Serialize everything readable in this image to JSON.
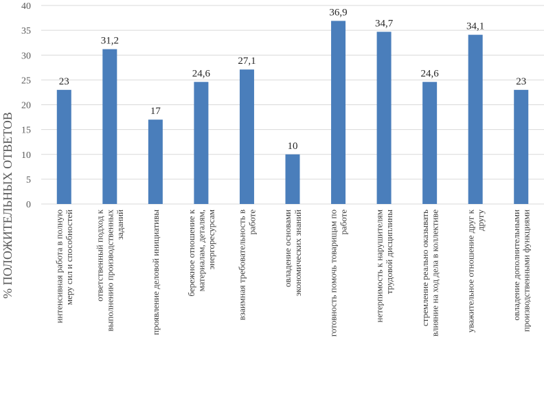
{
  "chart_data": {
    "type": "bar",
    "title": "",
    "xlabel": "",
    "ylabel": "% ПОЛОЖИТЕЛЬНЫХ ОТВЕТОВ",
    "ylim": [
      0,
      40
    ],
    "ytick_step": 5,
    "yticks": [
      "0",
      "5",
      "10",
      "15",
      "20",
      "25",
      "30",
      "35",
      "40"
    ],
    "grid": true,
    "bar_color": "#4a7ebb",
    "categories": [
      [
        "интенсивная работа в полную",
        "меру сил и способностей"
      ],
      [
        "ответственный подход к",
        "выполнению производственных",
        "заданий"
      ],
      [
        "проявление деловой инициативы"
      ],
      [
        "бережное отношение к",
        "материалам, деталям,",
        "энергоресурсам"
      ],
      [
        "взаимная требовательность в",
        "работе"
      ],
      [
        "овладение основами",
        "экономических знаний"
      ],
      [
        "готовность помочь товарищам по",
        "работе"
      ],
      [
        "нетерпимость к нарушителям",
        "трудовой дисциплины"
      ],
      [
        "стремление реально оказывать",
        "влияние на ход дела в коллективе"
      ],
      [
        "уважительное отношение друг к",
        "другу"
      ],
      [
        "овладение дополнительными",
        "производственными функциями"
      ]
    ],
    "values": [
      23,
      31.2,
      17,
      24.6,
      27.1,
      10,
      36.9,
      34.7,
      24.6,
      34.1,
      23
    ],
    "value_labels": [
      "23",
      "31,2",
      "17",
      "24,6",
      "27,1",
      "10",
      "36,9",
      "34,7",
      "24,6",
      "34,1",
      "23"
    ]
  }
}
